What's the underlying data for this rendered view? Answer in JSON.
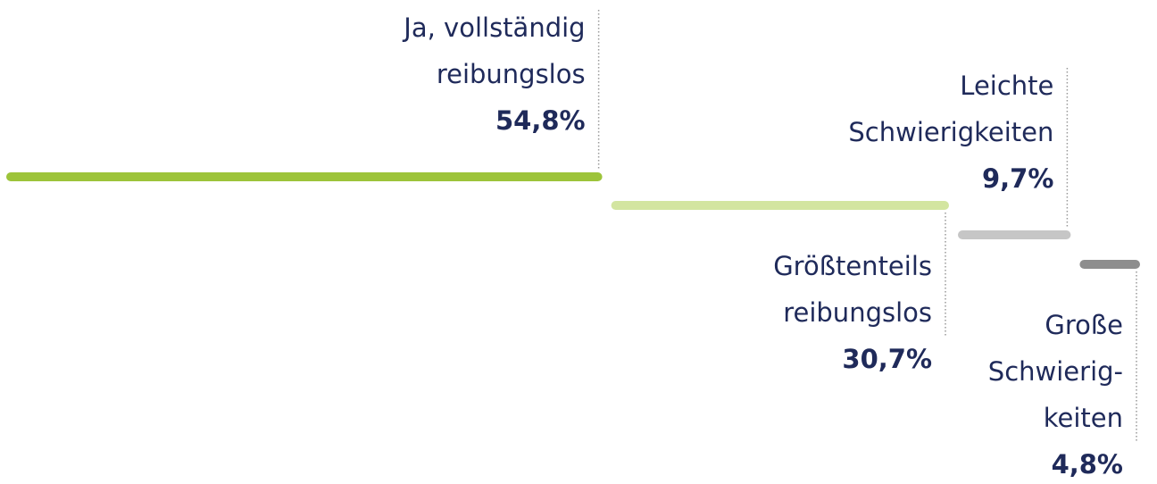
{
  "chart_data": {
    "type": "bar",
    "categories": [
      "Ja, vollständig\nreibungslos",
      "Größtenteils\nreibungslos",
      "Leichte\nSchwierigkeiten",
      "Große\nSchwierig-\nkeiten"
    ],
    "values": [
      54.8,
      30.7,
      9.7,
      4.8
    ],
    "value_labels": [
      "54,8%",
      "30,7%",
      "9,7%",
      "4,8%"
    ],
    "colors": [
      "#9dc43a",
      "#d3e5a0",
      "#c6c6c6",
      "#8e8e8e"
    ]
  }
}
